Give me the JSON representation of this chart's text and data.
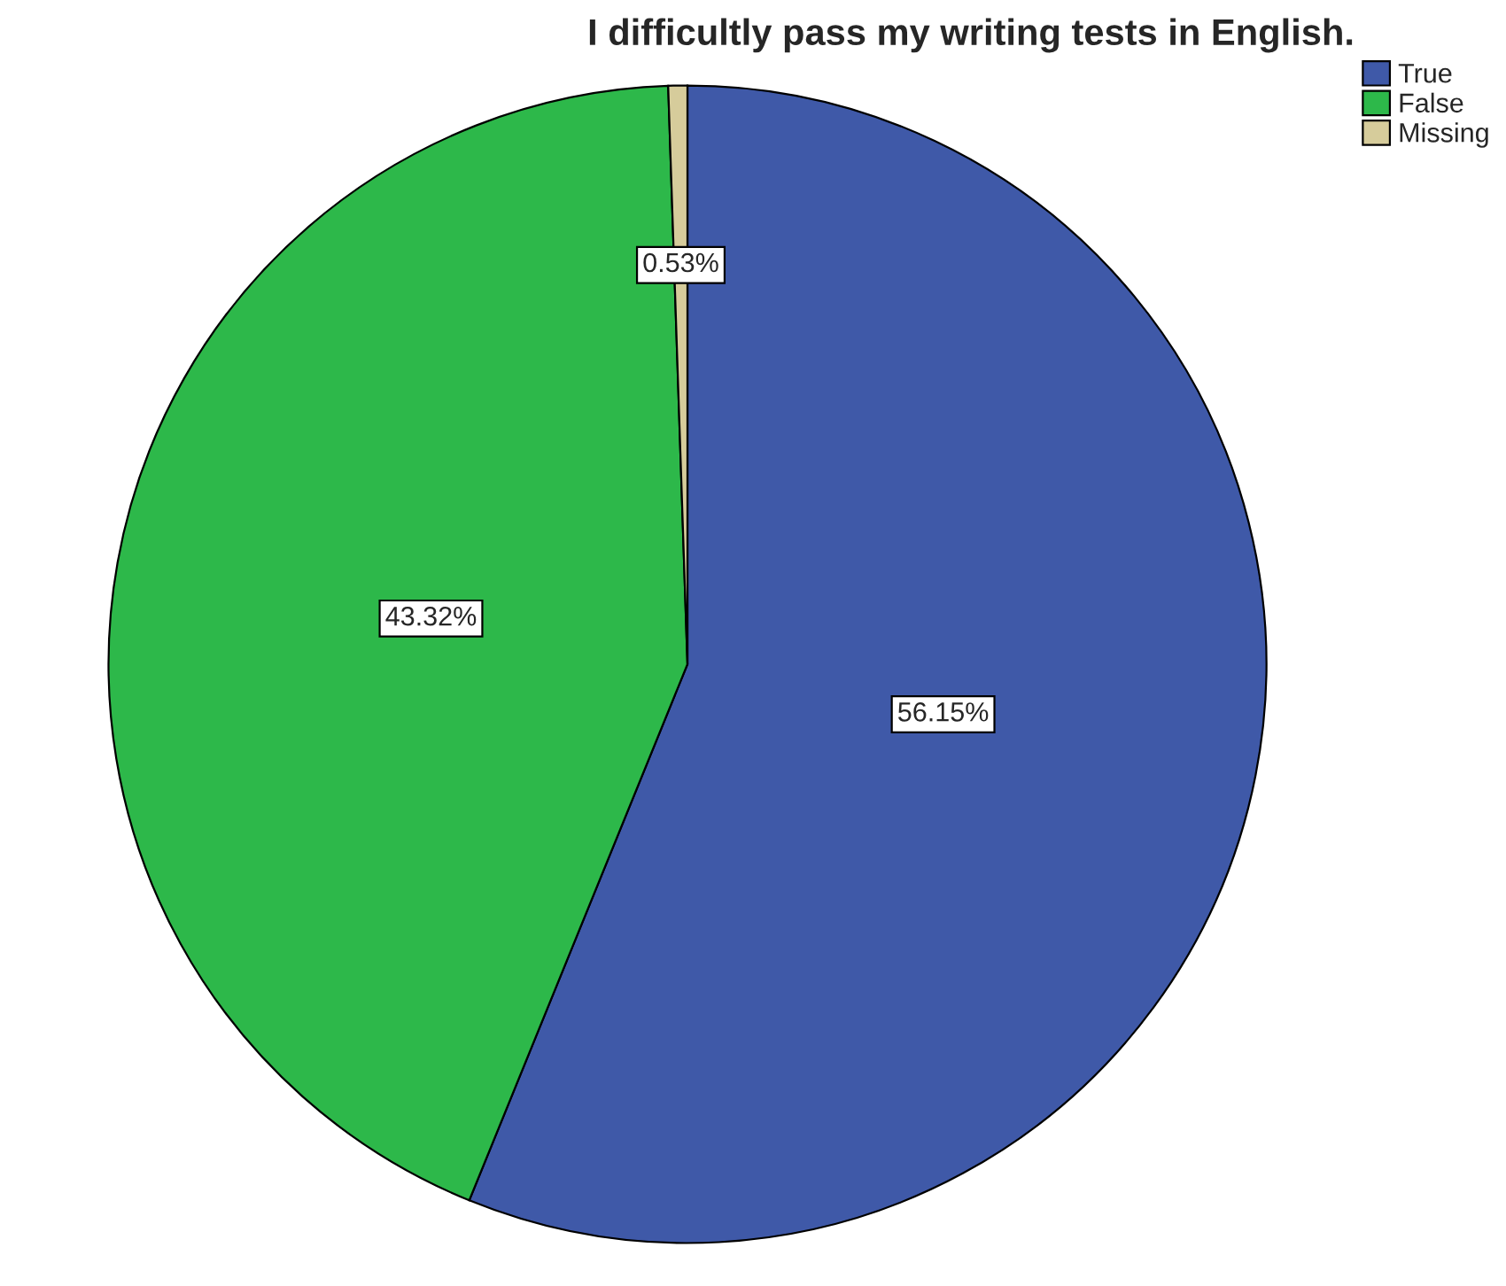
{
  "chart_data": {
    "type": "pie",
    "title": "I difficultly pass my writing tests in English.",
    "categories": [
      "True",
      "False",
      "Missing"
    ],
    "values": [
      56.15,
      43.32,
      0.53
    ],
    "colors": [
      "#3f59a8",
      "#2db84a",
      "#d6cc9b"
    ],
    "value_labels": [
      "56.15%",
      "43.32%",
      "0.53%"
    ],
    "legend": "top right"
  }
}
